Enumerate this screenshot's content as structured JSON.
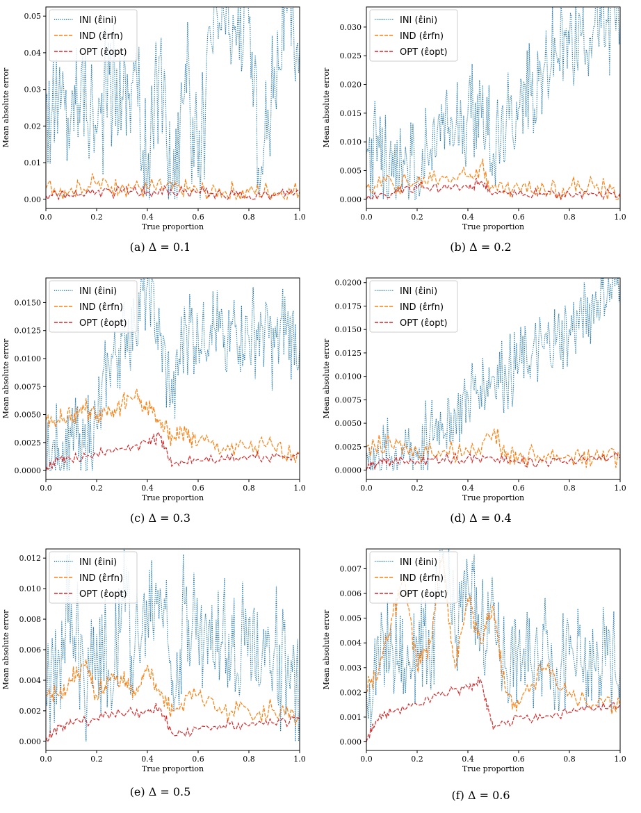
{
  "chart_data": [
    {
      "type": "line",
      "caption": "(a) Δ = 0.1",
      "xlabel": "True proportion",
      "ylabel": "Mean absolute error",
      "xlim": [
        0,
        1
      ],
      "ylim": [
        -0.0025,
        0.0525
      ],
      "xticks": [
        0.0,
        0.2,
        0.4,
        0.6,
        0.8,
        1.0
      ],
      "yticks": [
        0.0,
        0.01,
        0.02,
        0.03,
        0.04,
        0.05
      ],
      "series": [
        {
          "name": "INI (ε̂ini)",
          "style": "dotted",
          "color": "#1f77b4",
          "x": [
            0,
            0.05,
            0.1,
            0.14,
            0.2,
            0.25,
            0.3,
            0.35,
            0.4,
            0.45,
            0.5,
            0.55,
            0.6,
            0.65,
            0.7,
            0.75,
            0.8,
            0.85,
            0.9,
            0.95,
            1.0
          ],
          "y": [
            0.026,
            0.027,
            0.024,
            0.036,
            0.018,
            0.034,
            0.028,
            0.035,
            0.004,
            0.039,
            0.004,
            0.037,
            0.006,
            0.043,
            0.051,
            0.042,
            0.048,
            0.009,
            0.036,
            0.051,
            0.041
          ]
        },
        {
          "name": "IND (ε̂rfn)",
          "style": "dashed",
          "color": "#ff7f0e",
          "x": [
            0,
            0.1,
            0.2,
            0.3,
            0.4,
            0.5,
            0.6,
            0.7,
            0.8,
            0.9,
            1.0
          ],
          "y": [
            0.003,
            0.003,
            0.004,
            0.004,
            0.003,
            0.003,
            0.002,
            0.002,
            0.002,
            0.002,
            0.002
          ]
        },
        {
          "name": "OPT (ε̂opt)",
          "style": "dashed",
          "color": "#d62728",
          "x": [
            0,
            0.1,
            0.2,
            0.3,
            0.4,
            0.5,
            0.6,
            0.7,
            0.8,
            0.9,
            1.0
          ],
          "y": [
            0.001,
            0.001,
            0.002,
            0.002,
            0.002,
            0.002,
            0.002,
            0.001,
            0.001,
            0.001,
            0.002
          ]
        }
      ]
    },
    {
      "type": "line",
      "caption": "(b) Δ = 0.2",
      "xlabel": "True proportion",
      "ylabel": "Mean absolute error",
      "xlim": [
        0,
        1
      ],
      "ylim": [
        -0.0016,
        0.0335
      ],
      "xticks": [
        0.0,
        0.2,
        0.4,
        0.6,
        0.8,
        1.0
      ],
      "yticks": [
        0.0,
        0.005,
        0.01,
        0.015,
        0.02,
        0.025,
        0.03
      ],
      "series": [
        {
          "name": "INI (ε̂ini)",
          "style": "dotted",
          "color": "#1f77b4",
          "x": [
            0,
            0.05,
            0.1,
            0.15,
            0.2,
            0.25,
            0.3,
            0.35,
            0.4,
            0.45,
            0.5,
            0.55,
            0.6,
            0.65,
            0.7,
            0.75,
            0.8,
            0.85,
            0.9,
            0.95,
            1.0
          ],
          "y": [
            0.008,
            0.009,
            0.004,
            0.006,
            0.004,
            0.008,
            0.013,
            0.012,
            0.015,
            0.018,
            0.008,
            0.012,
            0.016,
            0.018,
            0.023,
            0.025,
            0.027,
            0.029,
            0.03,
            0.031,
            0.031
          ]
        },
        {
          "name": "IND (ε̂rfn)",
          "style": "dashed",
          "color": "#ff7f0e",
          "x": [
            0,
            0.1,
            0.2,
            0.3,
            0.4,
            0.45,
            0.5,
            0.6,
            0.7,
            0.8,
            0.9,
            1.0
          ],
          "y": [
            0.002,
            0.003,
            0.003,
            0.004,
            0.004,
            0.006,
            0.002,
            0.002,
            0.002,
            0.002,
            0.002,
            0.001
          ]
        },
        {
          "name": "OPT (ε̂opt)",
          "style": "dashed",
          "color": "#d62728",
          "x": [
            0,
            0.1,
            0.2,
            0.3,
            0.4,
            0.45,
            0.5,
            0.6,
            0.7,
            0.8,
            0.9,
            1.0
          ],
          "y": [
            0.0,
            0.001,
            0.002,
            0.002,
            0.002,
            0.003,
            0.001,
            0.001,
            0.001,
            0.001,
            0.001,
            0.001
          ]
        }
      ]
    },
    {
      "type": "line",
      "caption": "(c) Δ = 0.3",
      "xlabel": "True proportion",
      "ylabel": "Mean absolute error",
      "xlim": [
        0,
        1
      ],
      "ylim": [
        -0.0008,
        0.0172
      ],
      "xticks": [
        0.0,
        0.2,
        0.4,
        0.6,
        0.8,
        1.0
      ],
      "yticks": [
        0.0,
        0.0025,
        0.005,
        0.0075,
        0.01,
        0.0125,
        0.015
      ],
      "series": [
        {
          "name": "INI (ε̂ini)",
          "style": "dotted",
          "color": "#1f77b4",
          "x": [
            0,
            0.05,
            0.1,
            0.15,
            0.2,
            0.25,
            0.3,
            0.35,
            0.4,
            0.45,
            0.5,
            0.55,
            0.6,
            0.65,
            0.7,
            0.75,
            0.8,
            0.85,
            0.9,
            0.95,
            1.0
          ],
          "y": [
            0.0,
            0.002,
            0.003,
            0.002,
            0.004,
            0.009,
            0.012,
            0.013,
            0.0165,
            0.012,
            0.006,
            0.013,
            0.012,
            0.013,
            0.011,
            0.013,
            0.012,
            0.013,
            0.011,
            0.013,
            0.011
          ]
        },
        {
          "name": "IND (ε̂rfn)",
          "style": "dashed",
          "color": "#ff7f0e",
          "x": [
            0,
            0.05,
            0.1,
            0.15,
            0.2,
            0.25,
            0.3,
            0.35,
            0.4,
            0.45,
            0.5,
            0.55,
            0.6,
            0.7,
            0.8,
            0.9,
            1.0
          ],
          "y": [
            0.0045,
            0.0045,
            0.005,
            0.0055,
            0.005,
            0.0055,
            0.006,
            0.0065,
            0.0055,
            0.0045,
            0.003,
            0.0035,
            0.0025,
            0.002,
            0.002,
            0.002,
            0.0015
          ]
        },
        {
          "name": "OPT (ε̂opt)",
          "style": "dashed",
          "color": "#d62728",
          "x": [
            0,
            0.05,
            0.1,
            0.2,
            0.3,
            0.4,
            0.45,
            0.5,
            0.6,
            0.7,
            0.8,
            0.9,
            1.0
          ],
          "y": [
            0.0,
            0.001,
            0.001,
            0.0015,
            0.002,
            0.0025,
            0.003,
            0.0005,
            0.001,
            0.001,
            0.0012,
            0.0012,
            0.0015
          ]
        }
      ]
    },
    {
      "type": "line",
      "caption": "(d) Δ = 0.4",
      "xlabel": "True proportion",
      "ylabel": "Mean absolute error",
      "xlim": [
        0,
        1
      ],
      "ylim": [
        -0.001,
        0.0205
      ],
      "xticks": [
        0.0,
        0.2,
        0.4,
        0.6,
        0.8,
        1.0
      ],
      "yticks": [
        0.0,
        0.0025,
        0.005,
        0.0075,
        0.01,
        0.0125,
        0.015,
        0.0175,
        0.02
      ],
      "series": [
        {
          "name": "INI (ε̂ini)",
          "style": "dotted",
          "color": "#1f77b4",
          "x": [
            0,
            0.05,
            0.1,
            0.15,
            0.2,
            0.25,
            0.3,
            0.35,
            0.4,
            0.45,
            0.5,
            0.55,
            0.6,
            0.65,
            0.7,
            0.75,
            0.8,
            0.85,
            0.9,
            0.95,
            1.0
          ],
          "y": [
            0.002,
            0.001,
            0.0015,
            0.002,
            0.002,
            0.004,
            0.005,
            0.006,
            0.008,
            0.009,
            0.01,
            0.01,
            0.011,
            0.012,
            0.013,
            0.014,
            0.015,
            0.016,
            0.018,
            0.019,
            0.02
          ]
        },
        {
          "name": "IND (ε̂rfn)",
          "style": "dashed",
          "color": "#ff7f0e",
          "x": [
            0,
            0.1,
            0.2,
            0.3,
            0.4,
            0.5,
            0.55,
            0.6,
            0.7,
            0.8,
            0.9,
            1.0
          ],
          "y": [
            0.0025,
            0.0025,
            0.002,
            0.002,
            0.002,
            0.004,
            0.002,
            0.0015,
            0.0015,
            0.0015,
            0.0015,
            0.0015
          ]
        },
        {
          "name": "OPT (ε̂opt)",
          "style": "dashed",
          "color": "#d62728",
          "x": [
            0,
            0.05,
            0.1,
            0.2,
            0.3,
            0.4,
            0.5,
            0.6,
            0.7,
            0.8,
            0.9,
            1.0
          ],
          "y": [
            0.0,
            0.001,
            0.001,
            0.001,
            0.0012,
            0.0014,
            0.0012,
            0.0008,
            0.001,
            0.001,
            0.0012,
            0.0013
          ]
        }
      ]
    },
    {
      "type": "line",
      "caption": "(e) Δ = 0.5",
      "xlabel": "True proportion",
      "ylabel": "Mean absolute error",
      "xlim": [
        0,
        1
      ],
      "ylim": [
        -0.0006,
        0.0126
      ],
      "xticks": [
        0.0,
        0.2,
        0.4,
        0.6,
        0.8,
        1.0
      ],
      "yticks": [
        0.0,
        0.002,
        0.004,
        0.006,
        0.008,
        0.01,
        0.012
      ],
      "series": [
        {
          "name": "INI (ε̂ini)",
          "style": "dotted",
          "color": "#1f77b4",
          "x": [
            0,
            0.05,
            0.1,
            0.15,
            0.2,
            0.25,
            0.3,
            0.35,
            0.4,
            0.45,
            0.5,
            0.55,
            0.6,
            0.65,
            0.7,
            0.75,
            0.8,
            0.85,
            0.9,
            0.95,
            1.0
          ],
          "y": [
            0.003,
            0.006,
            0.009,
            0.004,
            0.007,
            0.004,
            0.01,
            0.006,
            0.008,
            0.01,
            0.004,
            0.009,
            0.007,
            0.006,
            0.009,
            0.004,
            0.008,
            0.005,
            0.006,
            0.004,
            0.002
          ]
        },
        {
          "name": "IND (ε̂rfn)",
          "style": "dashed",
          "color": "#ff7f0e",
          "x": [
            0,
            0.05,
            0.1,
            0.15,
            0.2,
            0.25,
            0.3,
            0.35,
            0.4,
            0.45,
            0.5,
            0.6,
            0.7,
            0.8,
            0.9,
            1.0
          ],
          "y": [
            0.003,
            0.003,
            0.004,
            0.005,
            0.003,
            0.004,
            0.004,
            0.003,
            0.005,
            0.003,
            0.002,
            0.003,
            0.002,
            0.002,
            0.002,
            0.0015
          ]
        },
        {
          "name": "OPT (ε̂opt)",
          "style": "dashed",
          "color": "#d62728",
          "x": [
            0,
            0.05,
            0.1,
            0.2,
            0.3,
            0.4,
            0.45,
            0.5,
            0.6,
            0.7,
            0.8,
            0.9,
            1.0
          ],
          "y": [
            0.0,
            0.001,
            0.0012,
            0.0015,
            0.0018,
            0.002,
            0.0022,
            0.0005,
            0.0008,
            0.001,
            0.001,
            0.0012,
            0.0015
          ]
        }
      ]
    },
    {
      "type": "line",
      "caption": "(f) Δ = 0.6",
      "xlabel": "True proportion",
      "ylabel": "Mean absolute error",
      "xlim": [
        0,
        1
      ],
      "ylim": [
        -0.00035,
        0.0078
      ],
      "xticks": [
        0.0,
        0.2,
        0.4,
        0.6,
        0.8,
        1.0
      ],
      "yticks": [
        0.0,
        0.001,
        0.002,
        0.003,
        0.004,
        0.005,
        0.006,
        0.007
      ],
      "series": [
        {
          "name": "INI (ε̂ini)",
          "style": "dotted",
          "color": "#1f77b4",
          "x": [
            0,
            0.05,
            0.1,
            0.15,
            0.2,
            0.25,
            0.3,
            0.35,
            0.4,
            0.45,
            0.5,
            0.55,
            0.6,
            0.65,
            0.7,
            0.75,
            0.8,
            0.85,
            0.9,
            0.95,
            1.0
          ],
          "y": [
            0.002,
            0.003,
            0.004,
            0.003,
            0.004,
            0.003,
            0.0075,
            0.004,
            0.0065,
            0.004,
            0.0055,
            0.003,
            0.004,
            0.003,
            0.0045,
            0.003,
            0.0035,
            0.003,
            0.003,
            0.0035,
            0.003
          ]
        },
        {
          "name": "IND (ε̂rfn)",
          "style": "dashed",
          "color": "#ff7f0e",
          "x": [
            0,
            0.05,
            0.1,
            0.15,
            0.2,
            0.25,
            0.3,
            0.35,
            0.4,
            0.45,
            0.5,
            0.55,
            0.6,
            0.7,
            0.8,
            0.9,
            1.0
          ],
          "y": [
            0.002,
            0.003,
            0.005,
            0.0065,
            0.003,
            0.004,
            0.0075,
            0.003,
            0.0058,
            0.004,
            0.0055,
            0.002,
            0.0015,
            0.003,
            0.002,
            0.0015,
            0.0015
          ]
        },
        {
          "name": "OPT (ε̂opt)",
          "style": "dashed",
          "color": "#d62728",
          "x": [
            0,
            0.05,
            0.1,
            0.2,
            0.3,
            0.4,
            0.45,
            0.5,
            0.6,
            0.7,
            0.8,
            0.9,
            1.0
          ],
          "y": [
            0.0,
            0.001,
            0.0012,
            0.0015,
            0.002,
            0.0022,
            0.0025,
            0.0005,
            0.001,
            0.001,
            0.0012,
            0.0013,
            0.0015
          ]
        }
      ]
    }
  ]
}
